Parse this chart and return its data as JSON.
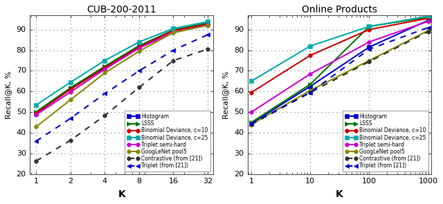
{
  "cub_title": "CUB-200-2011",
  "op_title": "Online Products",
  "ylabel": "Recall@K, %",
  "xlabel": "K",
  "cub_xticks": [
    1,
    2,
    4,
    8,
    16,
    32
  ],
  "op_xticks": [
    1,
    10,
    100,
    1000
  ],
  "ylim": [
    20,
    97
  ],
  "yticks": [
    20,
    30,
    40,
    50,
    60,
    70,
    80,
    90
  ],
  "cub": {
    "Histogram": {
      "x": [
        1,
        2,
        4,
        8,
        16,
        32
      ],
      "y": [
        49.5,
        61.5,
        71.5,
        81.5,
        89.5,
        92.7
      ],
      "color": "#0000cc",
      "marker": "s",
      "ls": "-",
      "lw": 1.5,
      "ms": 4
    },
    "LSSS": {
      "x": [
        1,
        2,
        4,
        8,
        16,
        32
      ],
      "y": [
        50.2,
        61.8,
        72.2,
        82.2,
        89.8,
        93.2
      ],
      "color": "#007700",
      "marker": ">",
      "ls": "-",
      "lw": 1.5,
      "ms": 4
    },
    "Binomial_c10": {
      "x": [
        1,
        2,
        4,
        8,
        16,
        32
      ],
      "y": [
        49.5,
        61.0,
        71.5,
        81.5,
        89.5,
        92.5
      ],
      "color": "#cc0000",
      "marker": "o",
      "ls": "-",
      "lw": 1.5,
      "ms": 4
    },
    "Binomial_c25": {
      "x": [
        1,
        2,
        4,
        8,
        16,
        32
      ],
      "y": [
        53.5,
        64.5,
        75.0,
        84.0,
        90.5,
        93.8
      ],
      "color": "#00aaaa",
      "marker": "s",
      "ls": "-",
      "lw": 1.5,
      "ms": 4
    },
    "Triplet_semi": {
      "x": [
        1,
        2,
        4,
        8,
        16,
        32
      ],
      "y": [
        48.8,
        59.8,
        70.8,
        81.0,
        88.5,
        92.3
      ],
      "color": "#cc00cc",
      "marker": "o",
      "ls": "-",
      "lw": 1.5,
      "ms": 4
    },
    "GoogLeNet_pool5": {
      "x": [
        1,
        2,
        4,
        8,
        16,
        32
      ],
      "y": [
        43.0,
        56.0,
        69.0,
        79.5,
        88.5,
        92.0
      ],
      "color": "#888800",
      "marker": "o",
      "ls": "-",
      "lw": 1.5,
      "ms": 4
    },
    "Contrastive_21": {
      "x": [
        1,
        2,
        4,
        8,
        16,
        32
      ],
      "y": [
        26.4,
        36.4,
        48.4,
        62.0,
        75.0,
        80.5
      ],
      "color": "#333333",
      "marker": "o",
      "ls": "--",
      "lw": 1.5,
      "ms": 4
    },
    "Triplet_21": {
      "x": [
        1,
        2,
        4,
        8,
        16,
        32
      ],
      "y": [
        36.0,
        47.0,
        59.0,
        70.0,
        80.0,
        87.5
      ],
      "color": "#0000cc",
      "marker": "<",
      "ls": "--",
      "lw": 1.5,
      "ms": 4
    }
  },
  "op": {
    "Histogram": {
      "x": [
        1,
        10,
        100,
        1000
      ],
      "y": [
        44.5,
        62.5,
        81.5,
        94.5
      ],
      "color": "#0000cc",
      "marker": "s",
      "ls": "-",
      "lw": 1.5,
      "ms": 4
    },
    "LSSS": {
      "x": [
        1,
        10,
        100,
        1000
      ],
      "y": [
        45.0,
        63.5,
        91.5,
        96.0
      ],
      "color": "#007700",
      "marker": ">",
      "ls": "-",
      "lw": 1.5,
      "ms": 4
    },
    "Binomial_c10": {
      "x": [
        1,
        10,
        100,
        1000
      ],
      "y": [
        59.5,
        77.5,
        90.0,
        95.5
      ],
      "color": "#cc0000",
      "marker": "o",
      "ls": "-",
      "lw": 1.5,
      "ms": 4
    },
    "Binomial_c25": {
      "x": [
        1,
        10,
        100,
        1000
      ],
      "y": [
        65.0,
        82.0,
        91.5,
        96.5
      ],
      "color": "#00aaaa",
      "marker": "s",
      "ls": "-",
      "lw": 1.5,
      "ms": 4
    },
    "Triplet_semi": {
      "x": [
        1,
        10,
        100,
        1000
      ],
      "y": [
        50.0,
        68.5,
        84.0,
        94.0
      ],
      "color": "#cc00cc",
      "marker": "o",
      "ls": "-",
      "lw": 1.5,
      "ms": 4
    },
    "GoogLeNet_pool5": {
      "x": [
        1,
        10,
        100,
        1000
      ],
      "y": [
        44.0,
        60.5,
        75.0,
        89.5
      ],
      "color": "#888800",
      "marker": "o",
      "ls": "-",
      "lw": 1.5,
      "ms": 4
    },
    "Contrastive_21": {
      "x": [
        1,
        10,
        100,
        1000
      ],
      "y": [
        44.0,
        59.5,
        74.5,
        89.0
      ],
      "color": "#333333",
      "marker": "o",
      "ls": "--",
      "lw": 1.5,
      "ms": 4
    },
    "Triplet_21": {
      "x": [
        1,
        10,
        100,
        1000
      ],
      "y": [
        44.5,
        59.5,
        80.5,
        91.0
      ],
      "color": "#0000cc",
      "marker": "<",
      "ls": "--",
      "lw": 1.5,
      "ms": 4
    }
  },
  "legend_labels": {
    "Histogram": "Histogram",
    "LSSS": "LSSS",
    "Binomial_c10": "Binomial Deviance, c=10",
    "Binomial_c25": "Binomial Deviance, c=25",
    "Triplet_semi": "Triplet semi-hard",
    "GoogLeNet_pool5": "GoogLeNet pool5",
    "Contrastive_21": "Contrastive (from [21])",
    "Triplet_21": "Triplet (from [21])"
  },
  "bg_color": "#e8e8e8",
  "axes_bg": "#ffffff"
}
